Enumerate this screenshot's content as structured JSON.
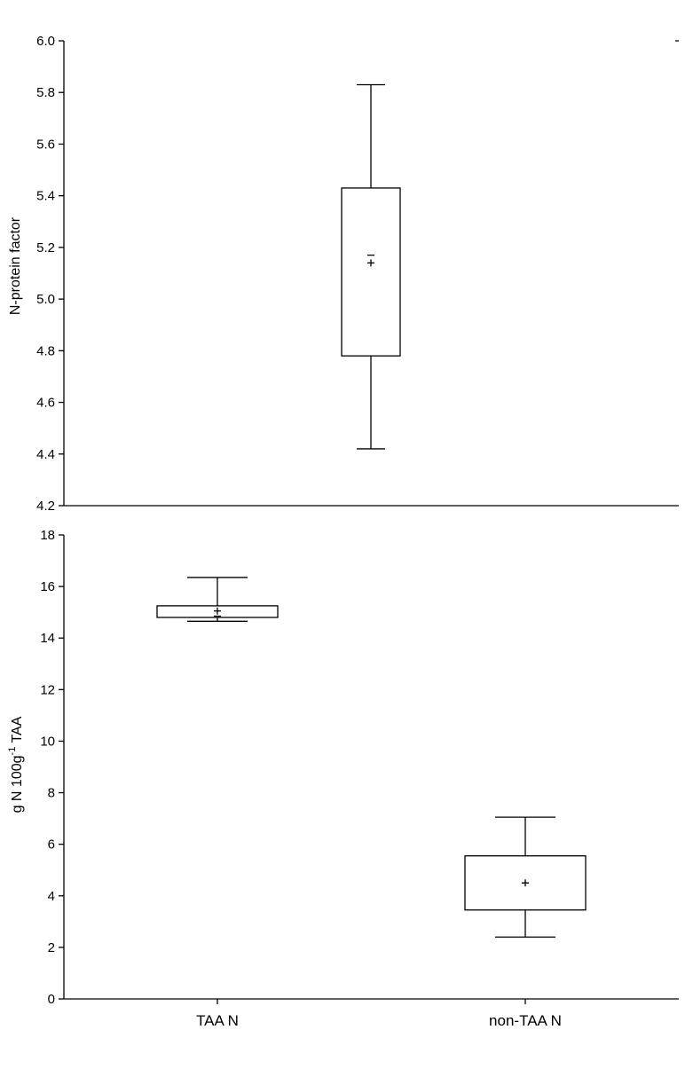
{
  "chart_data": [
    {
      "type": "box",
      "ylabel": "N-protein factor",
      "ylim": [
        4.2,
        6.0
      ],
      "yticks": [
        "4.2",
        "4.4",
        "4.6",
        "4.8",
        "5.0",
        "5.2",
        "5.4",
        "5.6",
        "5.8",
        "6.0"
      ],
      "x_position": "center",
      "boxes": [
        {
          "category": "",
          "whisker_low": 4.42,
          "q1": 4.78,
          "median": 5.17,
          "mean": 5.14,
          "q3": 5.43,
          "whisker_high": 5.83
        }
      ]
    },
    {
      "type": "box",
      "ylabel_parts": {
        "base": "g N 100g",
        "sup": "-1",
        "tail": " TAA"
      },
      "ylim": [
        0,
        18
      ],
      "yticks": [
        "0",
        "2",
        "4",
        "6",
        "8",
        "10",
        "12",
        "14",
        "16",
        "18"
      ],
      "categories": [
        "TAA N",
        "non-TAA N"
      ],
      "boxes": [
        {
          "category": "TAA N",
          "whisker_low": 14.65,
          "q1": 14.8,
          "median": 14.85,
          "mean": 15.05,
          "q3": 15.25,
          "whisker_high": 16.35
        },
        {
          "category": "non-TAA N",
          "whisker_low": 2.4,
          "q1": 3.45,
          "median": 4.5,
          "mean": 4.5,
          "q3": 5.55,
          "whisker_high": 7.05
        }
      ]
    }
  ]
}
